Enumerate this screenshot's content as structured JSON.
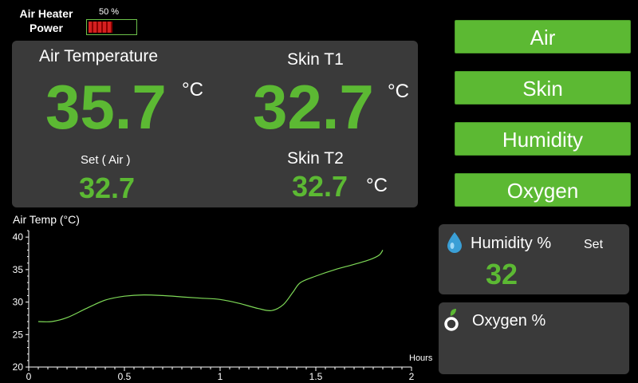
{
  "heater": {
    "label_line1": "Air Heater",
    "label_line2": "Power",
    "percent_text": "50 %",
    "level": 0.5
  },
  "main": {
    "air_temp_label": "Air Temperature",
    "air_temp_value": "35.7",
    "air_temp_unit": "°C",
    "skin_t1_label": "Skin T1",
    "skin_t1_value": "32.7",
    "skin_t1_unit": "°C",
    "set_label": "Set ( Air )",
    "set_value": "32.7",
    "skin_t2_label": "Skin T2",
    "skin_t2_value": "32.7",
    "skin_t2_unit": "°C"
  },
  "buttons": {
    "air": "Air",
    "skin": "Skin",
    "humidity": "Humidity",
    "oxygen": "Oxygen"
  },
  "humidity_panel": {
    "title": "Humidity %",
    "set_label": "Set",
    "value": "32",
    "icon": "water-drop-icon"
  },
  "oxygen_panel": {
    "title": "Oxygen %",
    "icon": "oxygen-leaf-icon"
  },
  "colors": {
    "accent": "#5cb933",
    "panel": "#3a3a3a",
    "heater": "#d42020"
  },
  "chart_data": {
    "type": "line",
    "ylabel": "Air Temp (°C)",
    "xlabel": "Hours",
    "xlim": [
      0,
      2
    ],
    "ylim": [
      20,
      41
    ],
    "xticks": [
      0,
      0.5,
      1,
      1.5,
      2
    ],
    "xtick_labels": [
      "0",
      "0.5",
      "1",
      "1.5",
      "2"
    ],
    "yticks": [
      20,
      25,
      30,
      35,
      40
    ],
    "ytick_labels": [
      "20",
      "25",
      "30",
      "35",
      "40"
    ],
    "series": [
      {
        "color": "#7ed957",
        "x": [
          0.05,
          0.12,
          0.2,
          0.3,
          0.4,
          0.5,
          0.6,
          0.7,
          0.8,
          0.9,
          1.0,
          1.1,
          1.2,
          1.27,
          1.33,
          1.38,
          1.42,
          1.5,
          1.6,
          1.7,
          1.78,
          1.83,
          1.85
        ],
        "y": [
          27.0,
          27.0,
          27.6,
          29.0,
          30.3,
          30.9,
          31.1,
          31.0,
          30.8,
          30.6,
          30.4,
          29.8,
          29.0,
          28.7,
          29.6,
          31.5,
          33.0,
          34.0,
          35.0,
          35.8,
          36.5,
          37.2,
          38.0
        ]
      }
    ]
  }
}
